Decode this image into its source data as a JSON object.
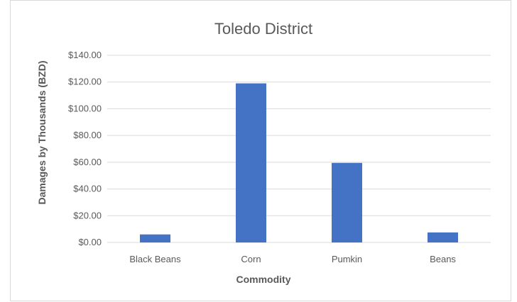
{
  "chart_data": {
    "type": "bar",
    "title": "Toledo District",
    "xlabel": "Commodity",
    "ylabel": "Damages by Thousands (BZD)",
    "categories": [
      "Black Beans",
      "Corn",
      "Pumkin",
      "Beans"
    ],
    "values": [
      6,
      119,
      59.5,
      7.5
    ],
    "ylim": [
      0,
      140
    ],
    "yticks": [
      0,
      20,
      40,
      60,
      80,
      100,
      120,
      140
    ],
    "ytick_labels": [
      "$0.00",
      "$20.00",
      "$40.00",
      "$60.00",
      "$80.00",
      "$100.00",
      "$120.00",
      "$140.00"
    ],
    "grid": true,
    "legend": "none",
    "bar_color": "#4472c4",
    "grid_color": "#d9d9d9"
  }
}
